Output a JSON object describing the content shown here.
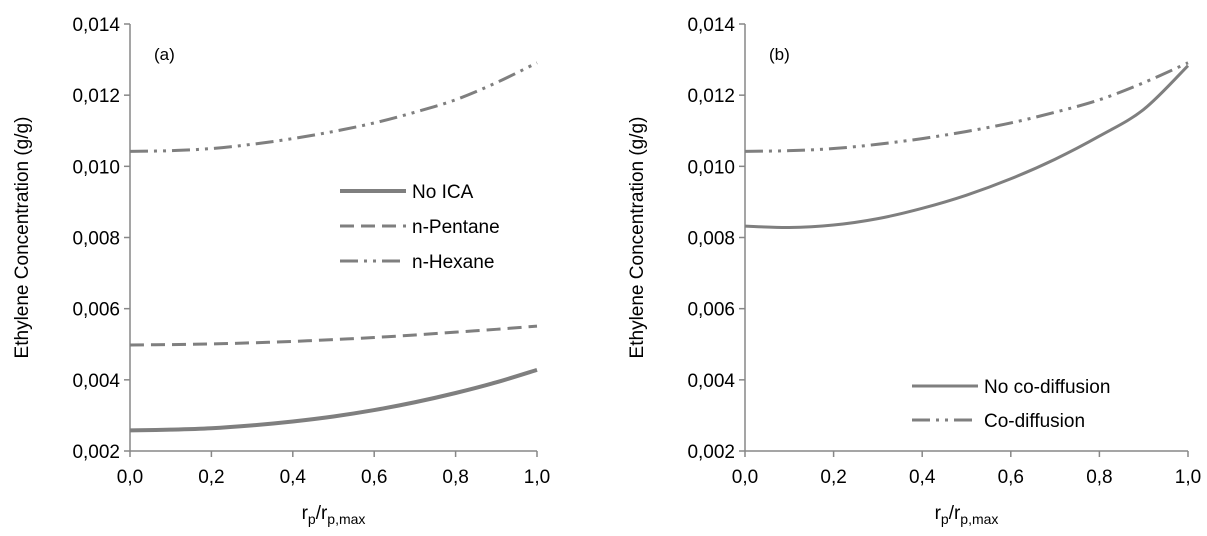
{
  "chart_data": [
    {
      "type": "line",
      "panel_label": "(a)",
      "xlabel_main": "r",
      "xlabel_sub1": "p",
      "xlabel_mid": "/r",
      "xlabel_sub2": "p,max",
      "ylabel": "Ethylene Concentration (g/g)",
      "xlim": [
        0,
        1
      ],
      "ylim": [
        0.002,
        0.014
      ],
      "x_ticks": [
        "0,0",
        "0,2",
        "0,4",
        "0,6",
        "0,8",
        "1,0"
      ],
      "y_ticks": [
        "0,002",
        "0,004",
        "0,006",
        "0,008",
        "0,010",
        "0,012",
        "0,014"
      ],
      "legend_position": "center-right",
      "x": [
        0,
        0.1,
        0.2,
        0.3,
        0.4,
        0.5,
        0.6,
        0.7,
        0.8,
        0.9,
        1.0
      ],
      "series": [
        {
          "name": "No ICA",
          "style": "solid",
          "values": [
            0.00258,
            0.0026,
            0.00264,
            0.00272,
            0.00283,
            0.00297,
            0.00315,
            0.00337,
            0.00363,
            0.00393,
            0.00428
          ]
        },
        {
          "name": "n-Pentane",
          "style": "dashed",
          "values": [
            0.00498,
            0.00499,
            0.00501,
            0.00504,
            0.00508,
            0.00513,
            0.00519,
            0.00526,
            0.00534,
            0.00542,
            0.00551
          ]
        },
        {
          "name": "n-Hexane",
          "style": "dash-dot-dot",
          "values": [
            0.01042,
            0.01044,
            0.0105,
            0.01062,
            0.01078,
            0.01098,
            0.01122,
            0.01152,
            0.01187,
            0.01235,
            0.01291
          ]
        }
      ]
    },
    {
      "type": "line",
      "panel_label": "(b)",
      "xlabel_main": "r",
      "xlabel_sub1": "p",
      "xlabel_mid": "/r",
      "xlabel_sub2": "p,max",
      "ylabel": "Ethylene Concentration (g/g)",
      "xlim": [
        0,
        1
      ],
      "ylim": [
        0.002,
        0.014
      ],
      "x_ticks": [
        "0,0",
        "0,2",
        "0,4",
        "0,6",
        "0,8",
        "1,0"
      ],
      "y_ticks": [
        "0,002",
        "0,004",
        "0,006",
        "0,008",
        "0,010",
        "0,012",
        "0,014"
      ],
      "legend_position": "bottom-right",
      "x": [
        0,
        0.1,
        0.2,
        0.3,
        0.4,
        0.5,
        0.6,
        0.7,
        0.8,
        0.9,
        1.0
      ],
      "series": [
        {
          "name": "No co-diffusion",
          "style": "solid",
          "values": [
            0.00832,
            0.00828,
            0.00835,
            0.00853,
            0.00882,
            0.00919,
            0.00965,
            0.0102,
            0.01085,
            0.0116,
            0.01283
          ]
        },
        {
          "name": "Co-diffusion",
          "style": "dash-dot-dot",
          "values": [
            0.01042,
            0.01044,
            0.0105,
            0.01062,
            0.01078,
            0.01098,
            0.01122,
            0.01152,
            0.01187,
            0.01235,
            0.01291
          ]
        }
      ]
    }
  ],
  "colors": {
    "series": "#7f7f7f",
    "axis": "#878787"
  }
}
